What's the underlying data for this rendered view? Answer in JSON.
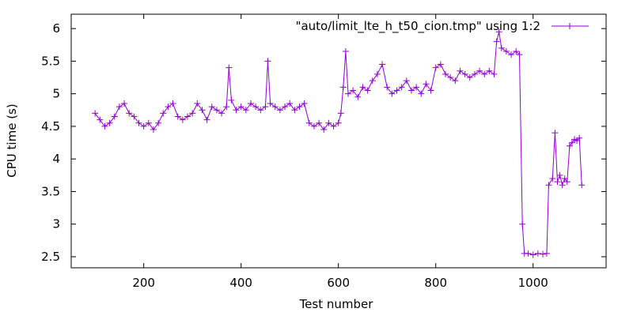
{
  "chart_data": {
    "type": "line",
    "title": "",
    "xlabel": "Test number",
    "ylabel": "CPU time (s)",
    "xlim": [
      51,
      1150
    ],
    "ylim": [
      2.33,
      6.22
    ],
    "x_ticks": [
      200,
      400,
      600,
      800,
      1000
    ],
    "x_tick_labels": [
      "200",
      "400",
      "600",
      "800",
      "1000"
    ],
    "y_ticks": [
      2.5,
      3,
      3.5,
      4,
      4.5,
      5,
      5.5,
      6
    ],
    "y_tick_labels": [
      "2.5",
      "3",
      "3.5",
      "4",
      "4.5",
      "5",
      "5.5",
      "6"
    ],
    "grid": false,
    "legend_position": "top-right",
    "marker": "plus",
    "series": [
      {
        "name": "\"auto/limit_lte_h_t50_cion.tmp\" using 1:2",
        "color": "#9400d3",
        "points": [
          [
            100,
            4.7
          ],
          [
            110,
            4.6
          ],
          [
            120,
            4.5
          ],
          [
            130,
            4.55
          ],
          [
            140,
            4.65
          ],
          [
            150,
            4.8
          ],
          [
            160,
            4.85
          ],
          [
            170,
            4.7
          ],
          [
            180,
            4.65
          ],
          [
            190,
            4.55
          ],
          [
            200,
            4.5
          ],
          [
            210,
            4.55
          ],
          [
            220,
            4.45
          ],
          [
            230,
            4.55
          ],
          [
            240,
            4.7
          ],
          [
            250,
            4.8
          ],
          [
            260,
            4.85
          ],
          [
            270,
            4.65
          ],
          [
            280,
            4.6
          ],
          [
            290,
            4.65
          ],
          [
            300,
            4.7
          ],
          [
            310,
            4.85
          ],
          [
            320,
            4.75
          ],
          [
            330,
            4.6
          ],
          [
            340,
            4.8
          ],
          [
            350,
            4.75
          ],
          [
            360,
            4.7
          ],
          [
            370,
            4.8
          ],
          [
            375,
            5.4
          ],
          [
            380,
            4.9
          ],
          [
            390,
            4.75
          ],
          [
            400,
            4.8
          ],
          [
            410,
            4.75
          ],
          [
            420,
            4.85
          ],
          [
            430,
            4.8
          ],
          [
            440,
            4.75
          ],
          [
            450,
            4.8
          ],
          [
            455,
            5.5
          ],
          [
            460,
            4.85
          ],
          [
            470,
            4.8
          ],
          [
            480,
            4.75
          ],
          [
            490,
            4.8
          ],
          [
            500,
            4.85
          ],
          [
            510,
            4.75
          ],
          [
            520,
            4.8
          ],
          [
            530,
            4.85
          ],
          [
            540,
            4.55
          ],
          [
            550,
            4.5
          ],
          [
            560,
            4.55
          ],
          [
            570,
            4.45
          ],
          [
            580,
            4.55
          ],
          [
            590,
            4.5
          ],
          [
            600,
            4.55
          ],
          [
            605,
            4.7
          ],
          [
            610,
            5.1
          ],
          [
            615,
            5.65
          ],
          [
            620,
            5.0
          ],
          [
            630,
            5.05
          ],
          [
            640,
            4.95
          ],
          [
            650,
            5.1
          ],
          [
            660,
            5.05
          ],
          [
            670,
            5.2
          ],
          [
            680,
            5.3
          ],
          [
            690,
            5.45
          ],
          [
            700,
            5.1
          ],
          [
            710,
            5.0
          ],
          [
            720,
            5.05
          ],
          [
            730,
            5.1
          ],
          [
            740,
            5.2
          ],
          [
            750,
            5.05
          ],
          [
            760,
            5.1
          ],
          [
            770,
            5.0
          ],
          [
            780,
            5.15
          ],
          [
            790,
            5.05
          ],
          [
            800,
            5.4
          ],
          [
            810,
            5.45
          ],
          [
            820,
            5.3
          ],
          [
            830,
            5.25
          ],
          [
            840,
            5.2
          ],
          [
            850,
            5.35
          ],
          [
            860,
            5.3
          ],
          [
            870,
            5.25
          ],
          [
            880,
            5.3
          ],
          [
            890,
            5.35
          ],
          [
            900,
            5.3
          ],
          [
            910,
            5.35
          ],
          [
            920,
            5.3
          ],
          [
            925,
            5.8
          ],
          [
            930,
            5.95
          ],
          [
            935,
            5.7
          ],
          [
            945,
            5.65
          ],
          [
            955,
            5.6
          ],
          [
            965,
            5.65
          ],
          [
            972,
            5.6
          ],
          [
            978,
            3.0
          ],
          [
            982,
            2.55
          ],
          [
            990,
            2.55
          ],
          [
            1000,
            2.53
          ],
          [
            1010,
            2.55
          ],
          [
            1020,
            2.54
          ],
          [
            1028,
            2.55
          ],
          [
            1032,
            3.6
          ],
          [
            1040,
            3.7
          ],
          [
            1045,
            4.4
          ],
          [
            1050,
            3.65
          ],
          [
            1055,
            3.75
          ],
          [
            1060,
            3.6
          ],
          [
            1065,
            3.7
          ],
          [
            1070,
            3.65
          ],
          [
            1075,
            4.2
          ],
          [
            1080,
            4.25
          ],
          [
            1085,
            4.3
          ],
          [
            1090,
            4.28
          ],
          [
            1095,
            4.32
          ],
          [
            1100,
            3.6
          ]
        ]
      }
    ]
  }
}
